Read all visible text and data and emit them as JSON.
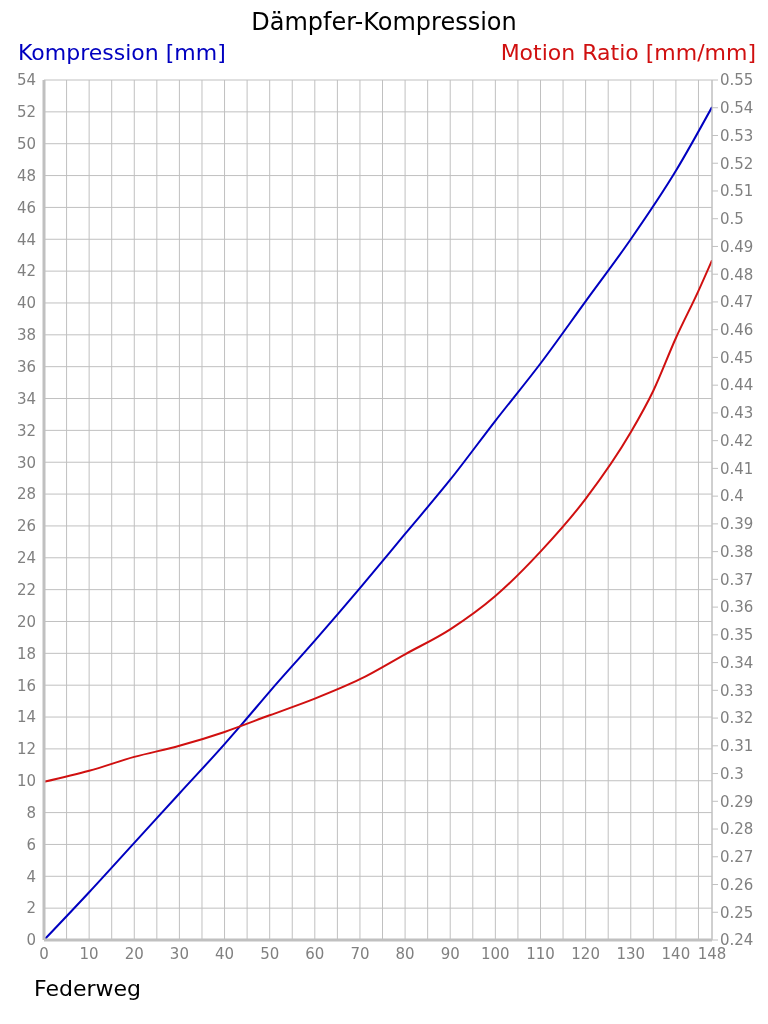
{
  "chart_data": {
    "type": "line",
    "title": "Dämpfer-Kompression",
    "xlabel": "Federweg",
    "ylabel": "Kompression [mm]",
    "y2label": "Motion Ratio [mm/mm]",
    "xlim": [
      0,
      148
    ],
    "xticks": [
      0,
      {
        "value": 5,
        "label": null
      },
      10,
      {
        "value": 15,
        "label": null
      },
      20,
      {
        "value": 25,
        "label": null
      },
      30,
      {
        "value": 35,
        "label": null
      },
      40,
      {
        "value": 45,
        "label": null
      },
      50,
      {
        "value": 55,
        "label": null
      },
      60,
      {
        "value": 65,
        "label": null
      },
      70,
      {
        "value": 75,
        "label": null
      },
      80,
      {
        "value": 85,
        "label": null
      },
      90,
      {
        "value": 95,
        "label": null
      },
      100,
      {
        "value": 105,
        "label": null
      },
      110,
      {
        "value": 115,
        "label": null
      },
      120,
      {
        "value": 125,
        "label": null
      },
      130,
      {
        "value": 135,
        "label": null
      },
      140,
      {
        "value": 145,
        "label": null
      },
      148
    ],
    "ylim": [
      0,
      54
    ],
    "yticks": [
      0,
      2,
      4,
      6,
      8,
      10,
      12,
      14,
      16,
      18,
      20,
      22,
      24,
      26,
      28,
      30,
      32,
      34,
      36,
      38,
      40,
      42,
      44,
      46,
      48,
      50,
      52,
      54
    ],
    "y2lim": [
      0.24,
      0.55
    ],
    "y2ticks": [
      0.24,
      0.25,
      0.26,
      0.27,
      0.28,
      0.29,
      0.3,
      0.31,
      0.32,
      0.33,
      0.34,
      0.35,
      0.36,
      0.37,
      0.38,
      0.39,
      0.4,
      0.41,
      0.42,
      0.43,
      0.44,
      0.45,
      0.46,
      0.47,
      0.48,
      0.49,
      0.5,
      0.51,
      0.52,
      0.53,
      0.54,
      0.55
    ],
    "grid": true,
    "marker": "none",
    "line_style": "solid",
    "series": [
      {
        "color": "#0000c0",
        "axis": "y",
        "x": [
          0,
          10,
          20,
          30,
          40,
          44,
          50,
          60,
          70,
          80,
          90,
          100,
          110,
          120,
          130,
          140,
          148
        ],
        "values": [
          0,
          3.0,
          6.1,
          9.2,
          12.3,
          13.6,
          15.6,
          18.8,
          22.1,
          25.5,
          28.9,
          32.6,
          36.2,
          40.1,
          44.0,
          48.3,
          52.3
        ]
      },
      {
        "color": "#d01010",
        "axis": "y2",
        "x": [
          0,
          10,
          20,
          30,
          40,
          50,
          60,
          70,
          80,
          90,
          100,
          110,
          120,
          130,
          135,
          140,
          145,
          148
        ],
        "values": [
          0.297,
          0.301,
          0.306,
          0.31,
          0.315,
          0.321,
          0.327,
          0.334,
          0.343,
          0.352,
          0.364,
          0.38,
          0.399,
          0.423,
          0.438,
          0.457,
          0.474,
          0.485
        ]
      }
    ]
  }
}
